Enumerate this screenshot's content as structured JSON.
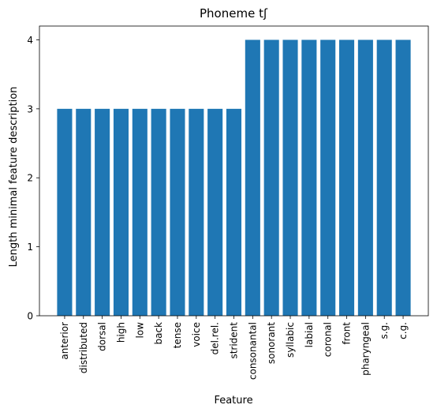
{
  "chart_data": {
    "type": "bar",
    "title": "Phoneme tʃ",
    "xlabel": "Feature",
    "ylabel": "Length minimal feature description",
    "categories": [
      "anterior",
      "distributed",
      "dorsal",
      "high",
      "low",
      "back",
      "tense",
      "voice",
      "del.rel.",
      "strident",
      "consonantal",
      "sonorant",
      "syllabic",
      "labial",
      "coronal",
      "front",
      "pharyngeal",
      "s.g.",
      "c.g."
    ],
    "values": [
      3,
      3,
      3,
      3,
      3,
      3,
      3,
      3,
      3,
      3,
      4,
      4,
      4,
      4,
      4,
      4,
      4,
      4,
      4
    ],
    "ylim": [
      0,
      4.2
    ],
    "yticks": [
      0,
      1,
      2,
      3,
      4
    ],
    "grid": false,
    "colors": {
      "bar": "#1f77b4",
      "axis": "#000000",
      "background": "#ffffff"
    }
  }
}
